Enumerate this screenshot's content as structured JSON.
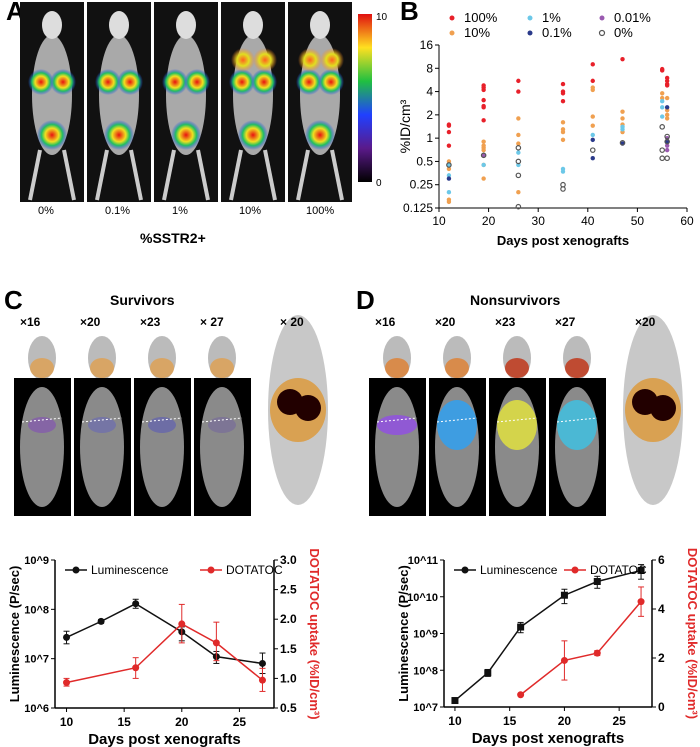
{
  "panels": {
    "a": "A",
    "b": "B",
    "c": "C",
    "d": "D"
  },
  "panel_a": {
    "groups": [
      "0%",
      "0.1%",
      "1%",
      "10%",
      "100%"
    ],
    "xlabel": "%SSTR2+",
    "colorbar": {
      "max": "10",
      "min": "0"
    }
  },
  "panel_c": {
    "title": "Survivors",
    "days": [
      "×16",
      "×20",
      "×23",
      "× 27",
      "× 20"
    ]
  },
  "panel_d": {
    "title": "Nonsurvivors",
    "days": [
      "×16",
      "×20",
      "×23",
      "×27",
      "×20"
    ]
  },
  "chart_data": [
    {
      "type": "scatter",
      "panel": "B",
      "xlabel": "Days post xenografts",
      "ylabel": "%ID/cm³",
      "xlim": [
        10,
        60
      ],
      "ylim": [
        0.125,
        16
      ],
      "yscale": "log2",
      "xticks": [
        "10",
        "20",
        "30",
        "40",
        "50",
        "60"
      ],
      "yticks": [
        "0.125",
        "0.25",
        "0.5",
        "1",
        "2",
        "4",
        "8",
        "16"
      ],
      "legend": "top",
      "series": [
        {
          "name": "100%",
          "color": "#e8202a",
          "marker": "dot",
          "points": [
            [
              12,
              1.5
            ],
            [
              12,
              1.45
            ],
            [
              12,
              1.2
            ],
            [
              12,
              0.8
            ],
            [
              19,
              4.8
            ],
            [
              19,
              4.5
            ],
            [
              19,
              4.2
            ],
            [
              19,
              3.1
            ],
            [
              19,
              2.6
            ],
            [
              19,
              2.5
            ],
            [
              19,
              1.7
            ],
            [
              26,
              5.5
            ],
            [
              26,
              4.0
            ],
            [
              35,
              5
            ],
            [
              35,
              4
            ],
            [
              35,
              3.8
            ],
            [
              35,
              3.0
            ],
            [
              41,
              9
            ],
            [
              41,
              5.5
            ],
            [
              47,
              10.5
            ],
            [
              55,
              7.8
            ],
            [
              55,
              7.5
            ],
            [
              56,
              6
            ],
            [
              56,
              5.5
            ],
            [
              56,
              5
            ],
            [
              56,
              4.8
            ]
          ]
        },
        {
          "name": "10%",
          "color": "#f0a050",
          "marker": "dot",
          "points": [
            [
              12,
              0.5
            ],
            [
              12,
              0.45
            ],
            [
              12,
              0.4
            ],
            [
              12,
              0.16
            ],
            [
              12,
              0.15
            ],
            [
              19,
              0.9
            ],
            [
              19,
              0.8
            ],
            [
              19,
              0.75
            ],
            [
              19,
              0.7
            ],
            [
              19,
              0.45
            ],
            [
              19,
              0.3
            ],
            [
              26,
              1.8
            ],
            [
              26,
              1.1
            ],
            [
              26,
              0.85
            ],
            [
              26,
              0.2
            ],
            [
              35,
              1.6
            ],
            [
              35,
              1.3
            ],
            [
              35,
              1.2
            ],
            [
              35,
              0.95
            ],
            [
              41,
              4.5
            ],
            [
              41,
              4.2
            ],
            [
              41,
              1.9
            ],
            [
              41,
              1.45
            ],
            [
              47,
              2.2
            ],
            [
              47,
              1.8
            ],
            [
              47,
              1.5
            ],
            [
              47,
              1.2
            ],
            [
              55,
              3.8
            ],
            [
              55,
              3.3
            ],
            [
              56,
              3.3
            ],
            [
              56,
              2.3
            ],
            [
              56,
              2.0
            ],
            [
              56,
              1.8
            ]
          ]
        },
        {
          "name": "1%",
          "color": "#6cc8e8",
          "marker": "dot",
          "points": [
            [
              12,
              0.45
            ],
            [
              12,
              0.33
            ],
            [
              12,
              0.2
            ],
            [
              19,
              0.45
            ],
            [
              26,
              0.65
            ],
            [
              26,
              0.45
            ],
            [
              35,
              0.4
            ],
            [
              35,
              0.37
            ],
            [
              41,
              1.1
            ],
            [
              47,
              1.4
            ],
            [
              47,
              1.3
            ],
            [
              55,
              3.0
            ],
            [
              55,
              2.5
            ],
            [
              55,
              1.9
            ]
          ]
        },
        {
          "name": "0.1%",
          "color": "#2a3a8a",
          "marker": "dot",
          "points": [
            [
              12,
              0.3
            ],
            [
              19,
              0.6
            ],
            [
              41,
              0.95
            ],
            [
              41,
              0.55
            ],
            [
              47,
              0.85
            ],
            [
              56,
              2.5
            ],
            [
              56,
              0.9
            ]
          ]
        },
        {
          "name": "0.01%",
          "color": "#9a5ab0",
          "marker": "dot",
          "points": [
            [
              19,
              0.6
            ],
            [
              56,
              1.0
            ],
            [
              56,
              0.8
            ],
            [
              56,
              0.7
            ]
          ]
        },
        {
          "name": "0%",
          "color": "#555555",
          "marker": "open",
          "points": [
            [
              12,
              0.45
            ],
            [
              19,
              0.6
            ],
            [
              26,
              0.75
            ],
            [
              26,
              0.5
            ],
            [
              26,
              0.33
            ],
            [
              26,
              0.13
            ],
            [
              35,
              0.25
            ],
            [
              35,
              0.22
            ],
            [
              41,
              0.7
            ],
            [
              47,
              0.87
            ],
            [
              55,
              1.4
            ],
            [
              55,
              0.7
            ],
            [
              55,
              0.55
            ],
            [
              56,
              1.05
            ],
            [
              56,
              0.9
            ],
            [
              56,
              0.55
            ]
          ]
        }
      ]
    },
    {
      "type": "line",
      "panel": "C",
      "xlabel": "Days post xenografts",
      "ylabel": "Luminescence (P/sec)",
      "y2label": "DOTATOC uptake (%ID/cm³)",
      "xlim": [
        9,
        28
      ],
      "ylim": [
        1000000.0,
        1000000000.0
      ],
      "yscale": "log10",
      "y2lim": [
        0.5,
        3.0
      ],
      "xticks": [
        "10",
        "15",
        "20",
        "25"
      ],
      "yticks": [
        "10^6",
        "10^7",
        "10^8",
        "10^9"
      ],
      "y2ticks": [
        "0.5",
        "1.0",
        "1.5",
        "2.0",
        "2.5",
        "3.0"
      ],
      "legend": "top",
      "series": [
        {
          "name": "Luminescence",
          "axis": "left",
          "color": "#111111",
          "marker": "circle",
          "x": [
            10,
            13,
            16,
            20,
            23,
            27
          ],
          "values": [
            27000000.0,
            57000000.0,
            130000000.0,
            35000000.0,
            11000000.0,
            8000000.0
          ],
          "err_hi": [
            36000000.0,
            62000000.0,
            160000000.0,
            44000000.0,
            14000000.0,
            13000000.0
          ],
          "err_lo": [
            20000000.0,
            52000000.0,
            105000000.0,
            23000000.0,
            8000000.0,
            5000000.0
          ]
        },
        {
          "name": "DOTATOC",
          "axis": "right",
          "color": "#e02a2a",
          "marker": "circle",
          "x": [
            10,
            16,
            20,
            23,
            27
          ],
          "values": [
            0.93,
            1.18,
            1.92,
            1.6,
            0.97
          ],
          "err_hi": [
            1.0,
            1.35,
            2.25,
            1.95,
            1.17
          ],
          "err_lo": [
            0.87,
            1.0,
            1.6,
            1.3,
            0.78
          ]
        }
      ]
    },
    {
      "type": "line",
      "panel": "D",
      "xlabel": "Days post xenografts",
      "ylabel": "Luminescence (P/sec)",
      "y2label": "DOTATOC uptake (%ID/cm³)",
      "xlim": [
        9,
        28
      ],
      "ylim": [
        10000000.0,
        100000000000.0
      ],
      "yscale": "log10",
      "y2lim": [
        0,
        6
      ],
      "xticks": [
        "10",
        "15",
        "20",
        "25"
      ],
      "yticks": [
        "10^7",
        "10^8",
        "10^9",
        "10^10",
        "10^11"
      ],
      "y2ticks": [
        "0",
        "2",
        "4",
        "6"
      ],
      "legend": "top",
      "series": [
        {
          "name": "Luminescence",
          "axis": "left",
          "color": "#111111",
          "marker": "square",
          "x": [
            10,
            13,
            16,
            20,
            23,
            27
          ],
          "values": [
            15000000.0,
            85000000.0,
            1500000000.0,
            11000000000.0,
            26000000000.0,
            52000000000.0
          ],
          "err_hi": [
            17000000.0,
            105000000.0,
            2000000000.0,
            16000000000.0,
            36000000000.0,
            75000000000.0
          ],
          "err_lo": [
            13500000.0,
            68000000.0,
            1050000000.0,
            6500000000.0,
            17000000000.0,
            30000000000.0
          ]
        },
        {
          "name": "DOTATOC",
          "axis": "right",
          "color": "#e02a2a",
          "marker": "circle",
          "x": [
            16,
            20,
            23,
            27
          ],
          "values": [
            0.5,
            1.9,
            2.2,
            4.3
          ],
          "err_hi": [
            0.55,
            2.7,
            2.3,
            4.9
          ],
          "err_lo": [
            0.45,
            1.1,
            2.1,
            3.7
          ]
        }
      ]
    }
  ]
}
